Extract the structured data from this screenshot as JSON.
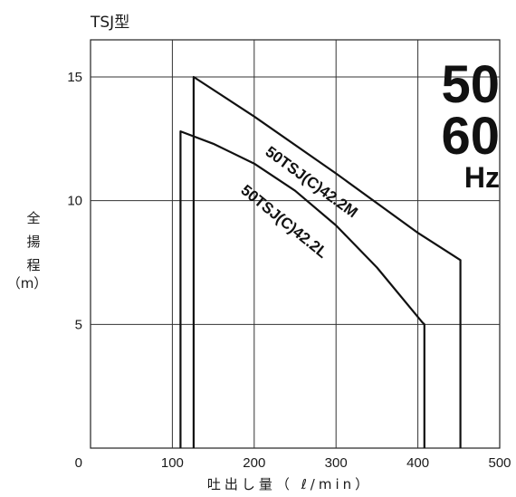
{
  "chart_data": {
    "type": "line",
    "title": "TSJ型",
    "xlabel": "吐出し量（ ℓ/min）",
    "ylabel_chars": [
      "全",
      "揚",
      "程"
    ],
    "ylabel_unit": "（m）",
    "xlim": [
      0,
      500
    ],
    "ylim": [
      0,
      16.5
    ],
    "x_ticks": [
      0,
      100,
      200,
      300,
      400,
      500
    ],
    "x_tick_labels": [
      "0",
      "100",
      "200",
      "300",
      "400",
      "500"
    ],
    "y_ticks": [
      5,
      10,
      15
    ],
    "y_tick_labels": [
      "5",
      "10",
      "15"
    ],
    "grid": true,
    "frequency_badge": {
      "line1": "50",
      "line2": "60",
      "unit": "Hz"
    },
    "series": [
      {
        "name": "50TSJ(C)42.2M",
        "points": [
          {
            "x": 126,
            "y": 0
          },
          {
            "x": 126,
            "y": 12.5
          },
          {
            "x": 126,
            "y": 15.0
          },
          {
            "x": 200,
            "y": 13.4
          },
          {
            "x": 300,
            "y": 11.1
          },
          {
            "x": 400,
            "y": 8.7
          },
          {
            "x": 452,
            "y": 7.6
          },
          {
            "x": 452,
            "y": 0
          }
        ]
      },
      {
        "name": "50TSJ(C)42.2L",
        "points": [
          {
            "x": 110,
            "y": 0
          },
          {
            "x": 110,
            "y": 12.8
          },
          {
            "x": 150,
            "y": 12.3
          },
          {
            "x": 200,
            "y": 11.5
          },
          {
            "x": 250,
            "y": 10.4
          },
          {
            "x": 300,
            "y": 9.0
          },
          {
            "x": 350,
            "y": 7.3
          },
          {
            "x": 405,
            "y": 5.1
          },
          {
            "x": 408,
            "y": 5.0
          },
          {
            "x": 408,
            "y": 0
          }
        ]
      }
    ]
  }
}
